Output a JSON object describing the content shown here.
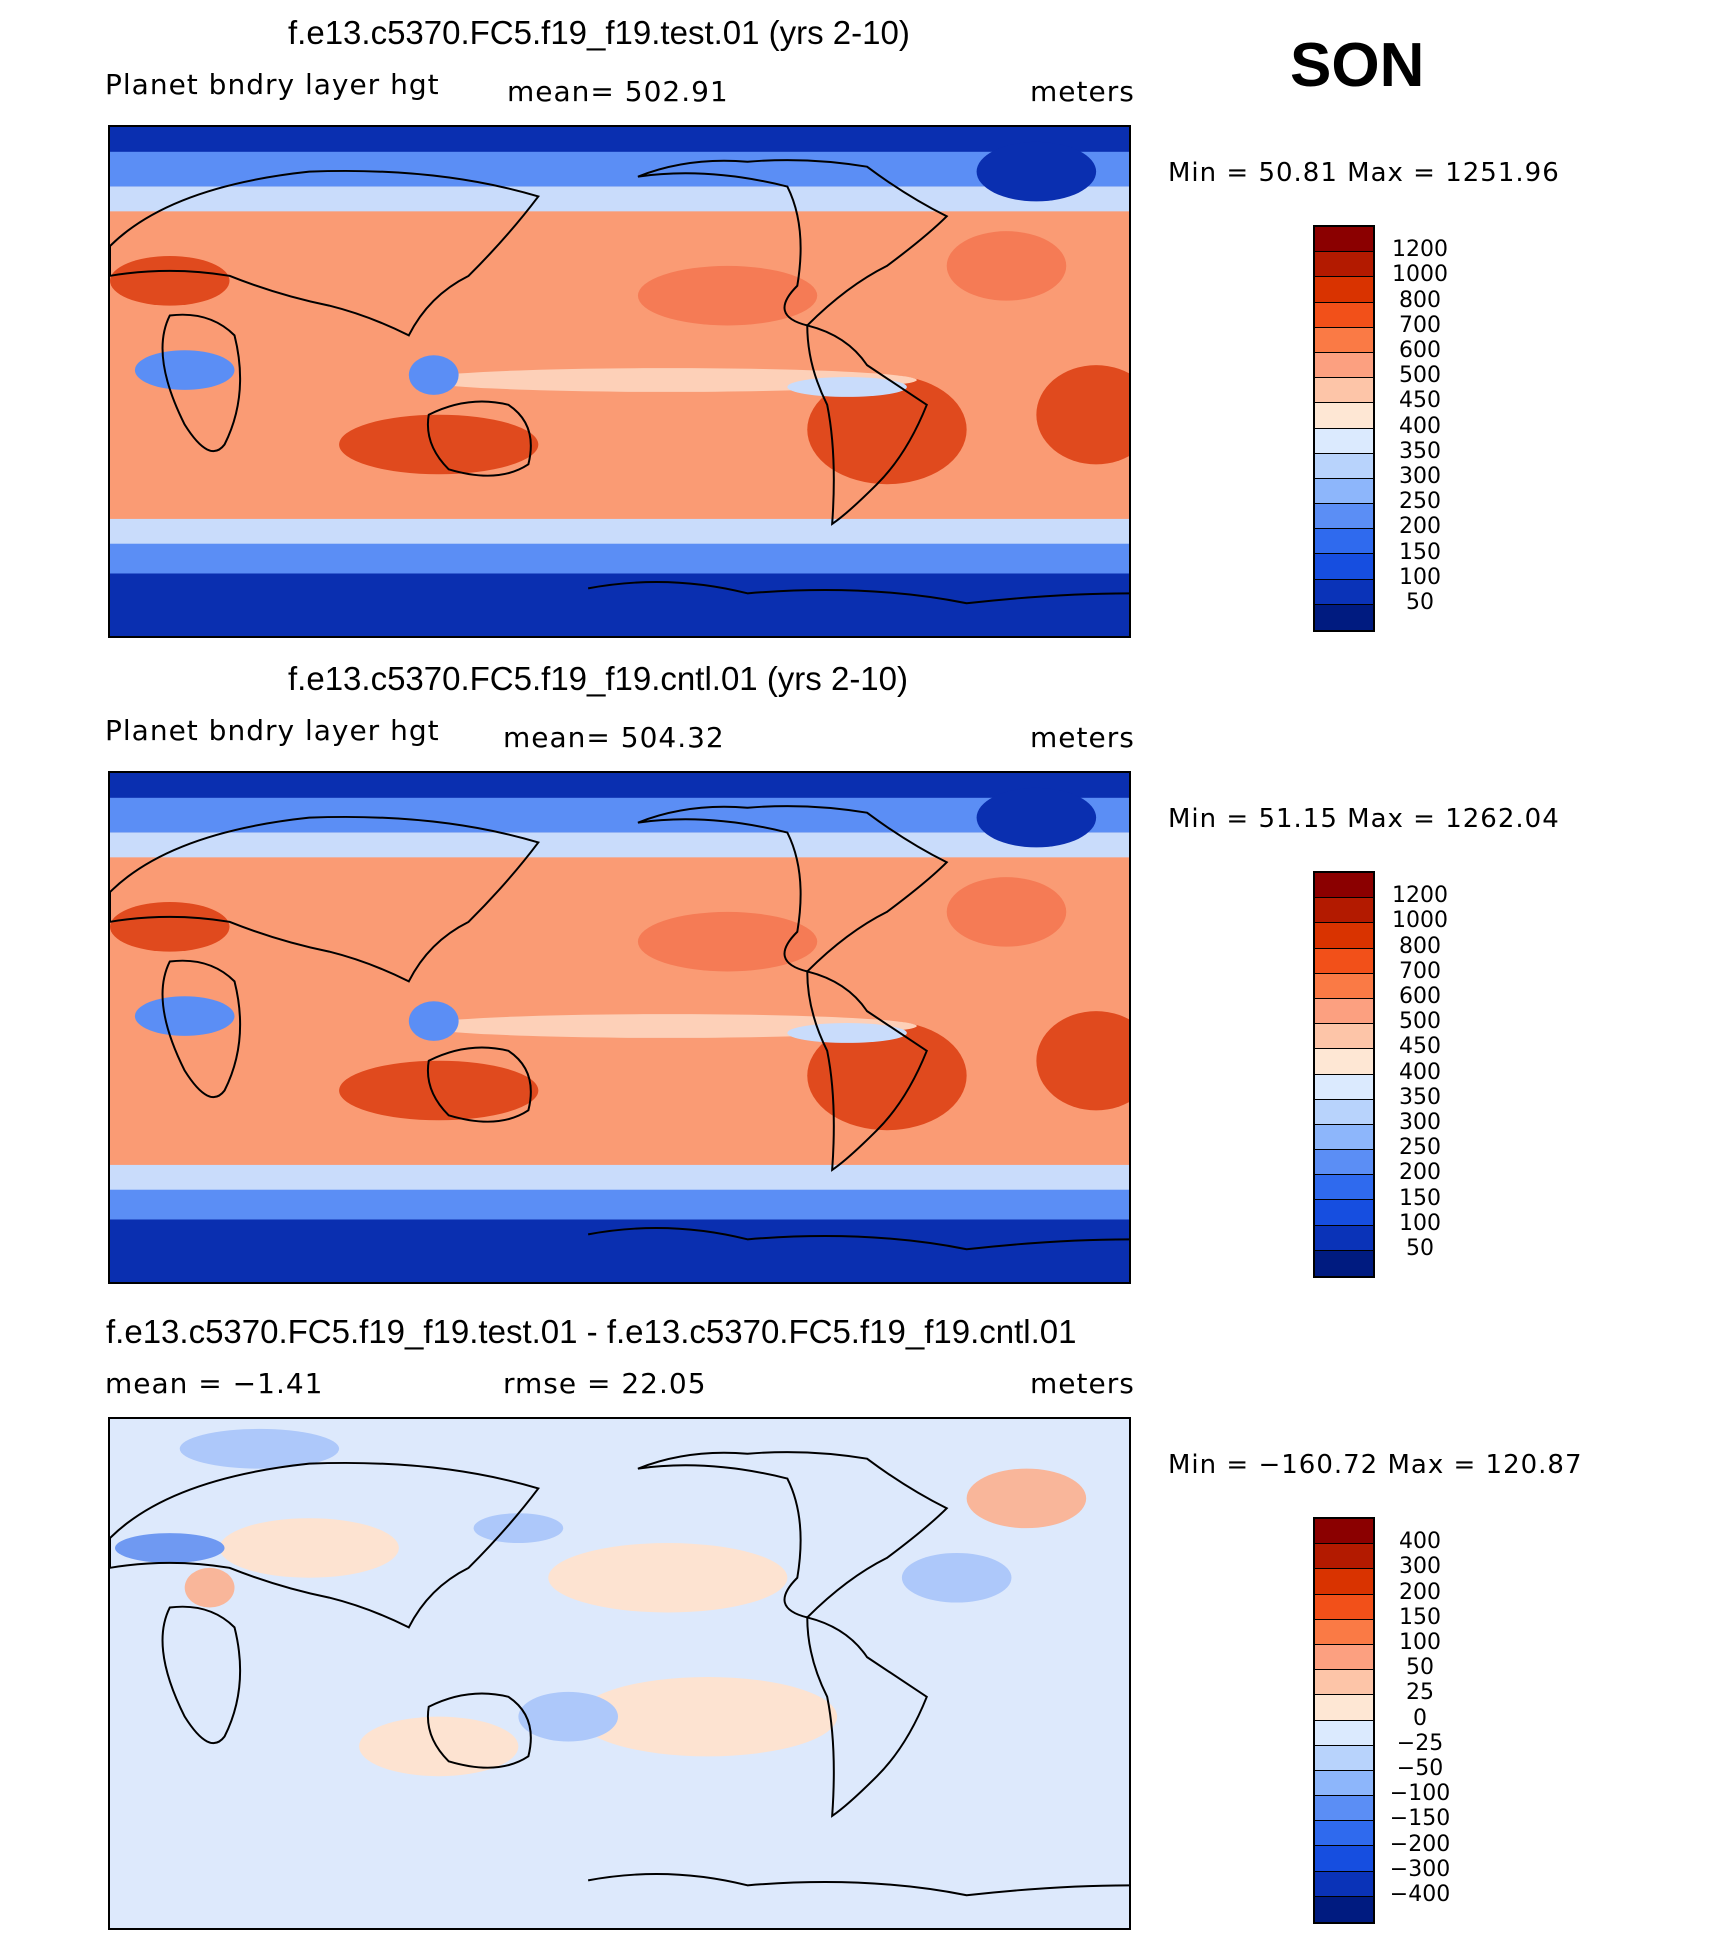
{
  "season": "SON",
  "panels": [
    {
      "title": "f.e13.c5370.FC5.f19_f19.test.01 (yrs 2-10)",
      "left_label": "Planet bndry layer hgt",
      "center_label": "mean= 502.91",
      "right_label": "meters",
      "minmax": "Min =   50.81  Max = 1251.96",
      "colorbar_labels": [
        "1200",
        "1000",
        "800",
        "700",
        "600",
        "500",
        "450",
        "400",
        "350",
        "300",
        "250",
        "200",
        "150",
        "100",
        "50"
      ]
    },
    {
      "title": "f.e13.c5370.FC5.f19_f19.cntl.01 (yrs 2-10)",
      "left_label": "Planet bndry layer hgt",
      "center_label": "mean= 504.32",
      "right_label": "meters",
      "minmax": "Min =   51.15  Max = 1262.04",
      "colorbar_labels": [
        "1200",
        "1000",
        "800",
        "700",
        "600",
        "500",
        "450",
        "400",
        "350",
        "300",
        "250",
        "200",
        "150",
        "100",
        "50"
      ]
    },
    {
      "title": "f.e13.c5370.FC5.f19_f19.test.01 - f.e13.c5370.FC5.f19_f19.cntl.01",
      "left_label": "mean =   −1.41",
      "center_label": "rmse =   22.05",
      "right_label": "meters",
      "minmax": "Min = −160.72  Max =  120.87",
      "colorbar_labels": [
        "400",
        "300",
        "200",
        "150",
        "100",
        "50",
        "25",
        "0",
        "−25",
        "−50",
        "−100",
        "−150",
        "−200",
        "−300",
        "−400"
      ]
    }
  ],
  "colorbar_colors": [
    "#8b0000",
    "#b31a00",
    "#d93300",
    "#f25019",
    "#fa7a45",
    "#fca080",
    "#fdc5a8",
    "#fee7d4",
    "#dbeafe",
    "#b8d3fc",
    "#8db6fb",
    "#5b8ef5",
    "#2f6aee",
    "#164ee0",
    "#0a33b8",
    "#001b80"
  ],
  "map_colors": {
    "ocean_mid": "#fa9b74",
    "tropical": "#f57b55",
    "hot": "#e04a1e",
    "pale": "#fdd0b8",
    "cool_light": "#c9dcfb",
    "cool": "#5b8ef5",
    "cold": "#1c4fdc",
    "polar": "#0a2fb0",
    "coast": "#000000",
    "diff_bg": "#dde9fc",
    "diff_pos": "#fde3d1",
    "diff_pos2": "#f9b69a",
    "diff_neg": "#adc8fa",
    "diff_neg2": "#6f99f2"
  }
}
